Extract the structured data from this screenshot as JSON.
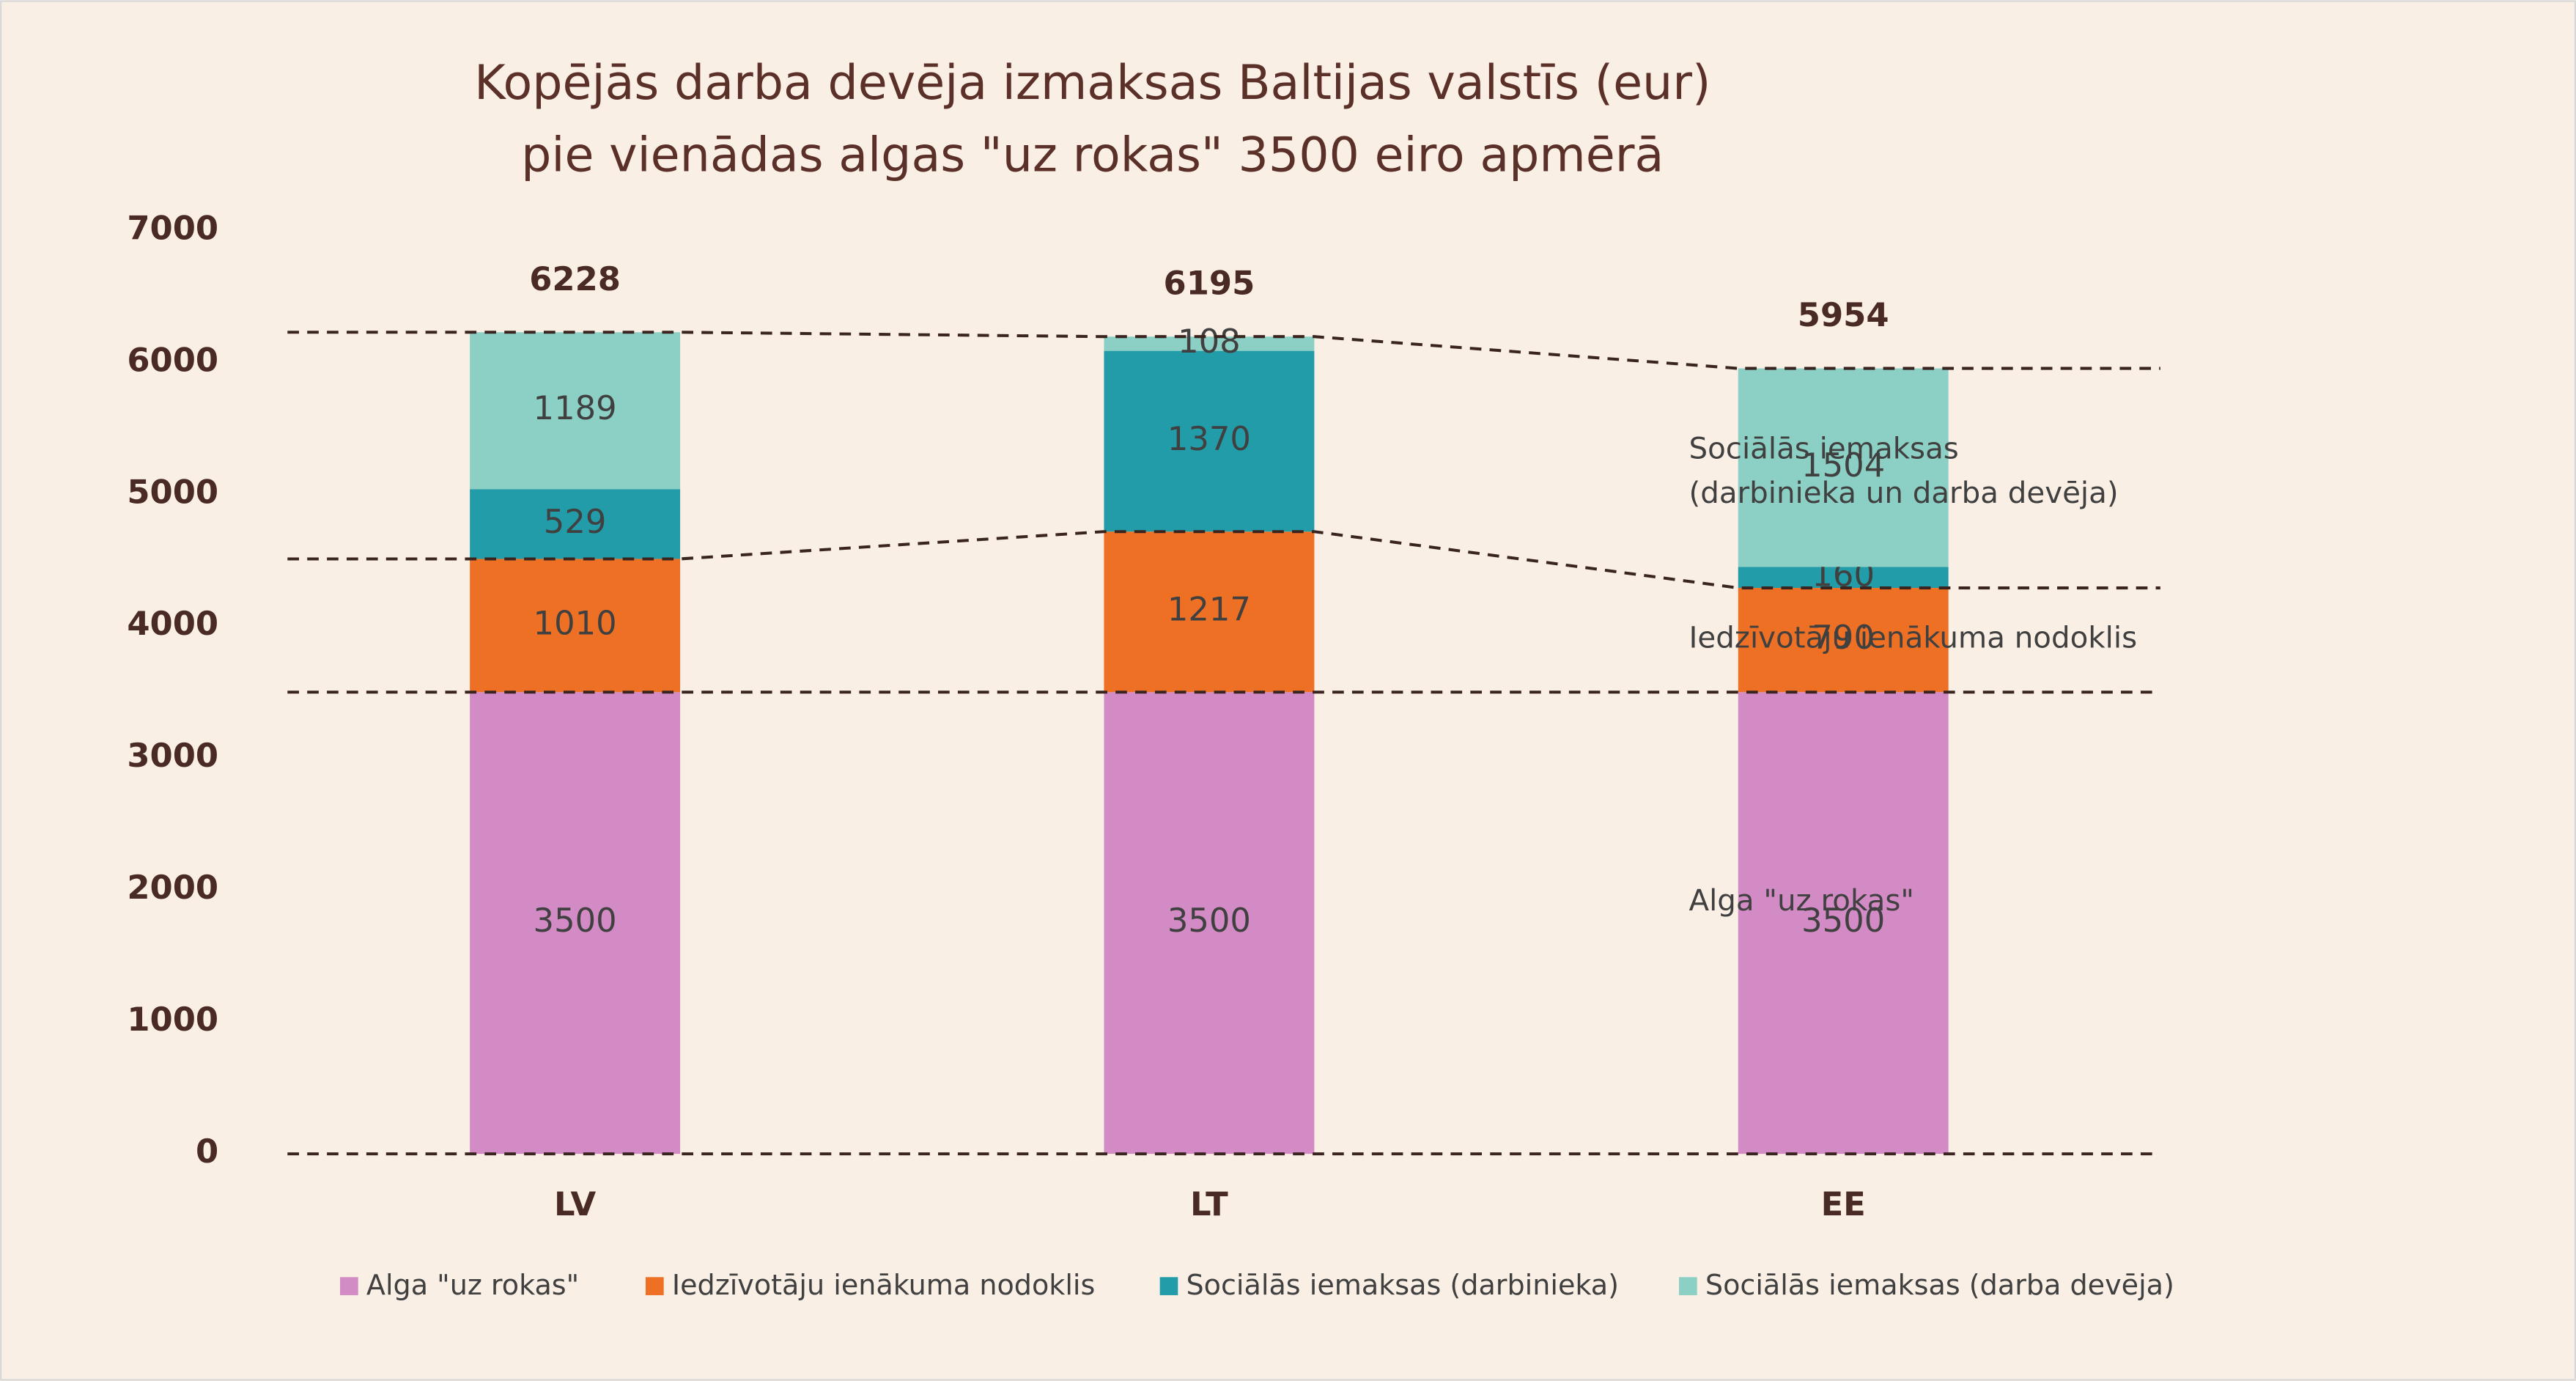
{
  "chart_data": {
    "type": "stacked-bar",
    "title": [
      "Kopējās darba devēja izmaksas Baltijas valstīs (eur)",
      "pie vienādas algas \"uz rokas\" 3500 eiro apmērā"
    ],
    "categories": [
      "LV",
      "LT",
      "EE"
    ],
    "series": [
      {
        "name": "Alga \"uz rokas\"",
        "color": "#d38bc6",
        "values": [
          3500,
          3500,
          3500
        ]
      },
      {
        "name": "Iedzīvotāju ienākuma nodoklis",
        "color": "#ee7024",
        "values": [
          1010,
          1217,
          790
        ]
      },
      {
        "name": "Sociālās iemaksas (darbinieka)",
        "color": "#229ca8",
        "values": [
          529,
          1370,
          160
        ]
      },
      {
        "name": "Sociālās iemaksas (darba devēja)",
        "color": "#8ccfc4",
        "values": [
          1189,
          108,
          1504
        ]
      }
    ],
    "totals": [
      6228,
      6195,
      5954
    ],
    "annotations": [
      [
        "Sociālās iemaksas",
        "(darbinieka un darba devēja)"
      ],
      [
        "Iedzīvotāju ienākuma nodoklis"
      ],
      [
        "Alga \"uz rokas\""
      ]
    ],
    "ylim": [
      0,
      7000
    ],
    "yticks": [
      0,
      1000,
      2000,
      3000,
      4000,
      5000,
      6000,
      7000
    ],
    "legend": "bottom",
    "grid": false
  }
}
